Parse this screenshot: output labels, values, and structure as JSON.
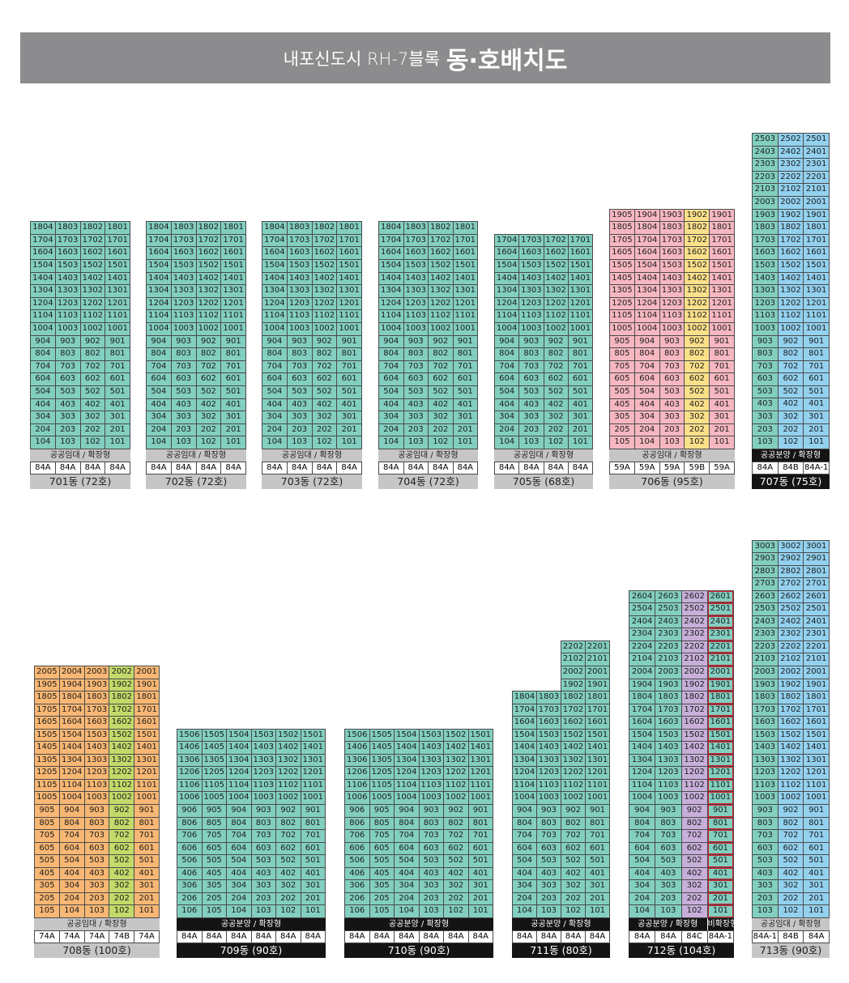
{
  "title": {
    "prefix": "내포신도시 RH-7블록",
    "main": "동·호배치도"
  },
  "buildings": [
    {
      "name": "701동 (72호)",
      "label": "공공임대 / 확장형",
      "name_style": "gray",
      "label_style": "gray",
      "floors": [
        "18",
        "17",
        "16",
        "15",
        "14",
        "13",
        "12",
        "11",
        "10",
        "9",
        "8",
        "7",
        "6",
        "5",
        "4",
        "3",
        "2",
        "1"
      ],
      "units": [
        "04",
        "03",
        "02",
        "01"
      ],
      "types": [
        "84A",
        "84A",
        "84A",
        "84A"
      ],
      "colors": [
        "teal",
        "teal",
        "teal",
        "teal"
      ]
    },
    {
      "name": "702동 (72호)",
      "label": "공공임대 / 확장형",
      "name_style": "gray",
      "label_style": "gray",
      "floors": [
        "18",
        "17",
        "16",
        "15",
        "14",
        "13",
        "12",
        "11",
        "10",
        "9",
        "8",
        "7",
        "6",
        "5",
        "4",
        "3",
        "2",
        "1"
      ],
      "units": [
        "04",
        "03",
        "02",
        "01"
      ],
      "types": [
        "84A",
        "84A",
        "84A",
        "84A"
      ],
      "colors": [
        "teal",
        "teal",
        "teal",
        "teal"
      ]
    },
    {
      "name": "703동 (72호)",
      "label": "공공임대 / 확장형",
      "name_style": "gray",
      "label_style": "gray",
      "floors": [
        "18",
        "17",
        "16",
        "15",
        "14",
        "13",
        "12",
        "11",
        "10",
        "9",
        "8",
        "7",
        "6",
        "5",
        "4",
        "3",
        "2",
        "1"
      ],
      "units": [
        "04",
        "03",
        "02",
        "01"
      ],
      "types": [
        "84A",
        "84A",
        "84A",
        "84A"
      ],
      "colors": [
        "teal",
        "teal",
        "teal",
        "teal"
      ]
    },
    {
      "name": "704동 (72호)",
      "label": "공공임대 / 확장형",
      "name_style": "gray",
      "label_style": "gray",
      "floors": [
        "18",
        "17",
        "16",
        "15",
        "14",
        "13",
        "12",
        "11",
        "10",
        "9",
        "8",
        "7",
        "6",
        "5",
        "4",
        "3",
        "2",
        "1"
      ],
      "units": [
        "04",
        "03",
        "02",
        "01"
      ],
      "types": [
        "84A",
        "84A",
        "84A",
        "84A"
      ],
      "colors": [
        "teal",
        "teal",
        "teal",
        "teal"
      ]
    },
    {
      "name": "705동 (68호)",
      "label": "공공임대 / 확장형",
      "name_style": "gray",
      "label_style": "gray",
      "floors": [
        "17",
        "16",
        "15",
        "14",
        "13",
        "12",
        "11",
        "10",
        "9",
        "8",
        "7",
        "6",
        "5",
        "4",
        "3",
        "2",
        "1"
      ],
      "units": [
        "04",
        "03",
        "02",
        "01"
      ],
      "types": [
        "84A",
        "84A",
        "84A",
        "84A"
      ],
      "colors": [
        "teal",
        "teal",
        "teal",
        "teal"
      ]
    },
    {
      "name": "706동 (95호)",
      "label": "공공임대 / 확장형",
      "name_style": "gray",
      "label_style": "gray",
      "floors": [
        "19",
        "18",
        "17",
        "16",
        "15",
        "14",
        "13",
        "12",
        "11",
        "10",
        "9",
        "8",
        "7",
        "6",
        "5",
        "4",
        "3",
        "2",
        "1"
      ],
      "units": [
        "05",
        "04",
        "03",
        "02",
        "01"
      ],
      "types": [
        "59A",
        "59A",
        "59A",
        "59B",
        "59A"
      ],
      "colors": [
        "pink",
        "pink",
        "pink",
        "yellow",
        "pink"
      ]
    },
    {
      "name": "707동 (75호)",
      "label": "공공분양 / 확장형",
      "name_style": "black",
      "label_style": "black",
      "floors": [
        "25",
        "24",
        "23",
        "22",
        "21",
        "20",
        "19",
        "18",
        "17",
        "16",
        "15",
        "14",
        "13",
        "12",
        "11",
        "10",
        "9",
        "8",
        "7",
        "6",
        "5",
        "4",
        "3",
        "2",
        "1"
      ],
      "units": [
        "03",
        "02",
        "01"
      ],
      "types": [
        "84A",
        "84B",
        "84A-1"
      ],
      "colors": [
        "teal",
        "blue",
        "blue"
      ]
    },
    {
      "name": "708동 (100호)",
      "label": "공공임대 / 확장형",
      "name_style": "gray",
      "label_style": "gray",
      "floors": [
        "20",
        "19",
        "18",
        "17",
        "16",
        "15",
        "14",
        "13",
        "12",
        "11",
        "10",
        "9",
        "8",
        "7",
        "6",
        "5",
        "4",
        "3",
        "2",
        "1"
      ],
      "units": [
        "05",
        "04",
        "03",
        "02",
        "01"
      ],
      "types": [
        "74A",
        "74A",
        "74A",
        "74B",
        "74A"
      ],
      "colors": [
        "orange",
        "orange",
        "orange",
        "lime",
        "orange"
      ]
    },
    {
      "name": "709동 (90호)",
      "label": "공공분양 / 확장형",
      "name_style": "black",
      "label_style": "black",
      "floors": [
        "15",
        "14",
        "13",
        "12",
        "11",
        "10",
        "9",
        "8",
        "7",
        "6",
        "5",
        "4",
        "3",
        "2",
        "1"
      ],
      "units": [
        "06",
        "05",
        "04",
        "03",
        "02",
        "01"
      ],
      "types": [
        "84A",
        "84A",
        "84A",
        "84A",
        "84A",
        "84A"
      ],
      "colors": [
        "teal",
        "teal",
        "teal",
        "teal",
        "teal",
        "teal"
      ]
    },
    {
      "name": "710동 (90호)",
      "label": "공공분양 / 확장형",
      "name_style": "black",
      "label_style": "black",
      "floors": [
        "15",
        "14",
        "13",
        "12",
        "11",
        "10",
        "9",
        "8",
        "7",
        "6",
        "5",
        "4",
        "3",
        "2",
        "1"
      ],
      "units": [
        "06",
        "05",
        "04",
        "03",
        "02",
        "01"
      ],
      "types": [
        "84A",
        "84A",
        "84A",
        "84A",
        "84A",
        "84A"
      ],
      "colors": [
        "teal",
        "teal",
        "teal",
        "teal",
        "teal",
        "teal"
      ]
    },
    {
      "name": "711동 (80호)",
      "label": "공공분양 / 확장형",
      "name_style": "black",
      "label_style": "black",
      "floors": [
        "22",
        "21",
        "20",
        "19",
        "18",
        "17",
        "16",
        "15",
        "14",
        "13",
        "12",
        "11",
        "10",
        "9",
        "8",
        "7",
        "6",
        "5",
        "4",
        "3",
        "2",
        "1"
      ],
      "units": [
        "04",
        "03",
        "02",
        "01"
      ],
      "column_floors": [
        18,
        18,
        22,
        22
      ],
      "types": [
        "84A",
        "84A",
        "84A",
        "84A"
      ],
      "colors": [
        "teal",
        "teal",
        "teal",
        "teal"
      ]
    },
    {
      "name": "712동 (104호)",
      "label": "공공분양 / 확장형",
      "label2": "비확장형",
      "name_style": "black",
      "label_style": "black",
      "floors": [
        "26",
        "25",
        "24",
        "23",
        "22",
        "21",
        "20",
        "19",
        "18",
        "17",
        "16",
        "15",
        "14",
        "13",
        "12",
        "11",
        "10",
        "9",
        "8",
        "7",
        "6",
        "5",
        "4",
        "3",
        "2",
        "1"
      ],
      "units": [
        "04",
        "03",
        "02",
        "01"
      ],
      "types": [
        "84A",
        "84A",
        "84C",
        "84A-1"
      ],
      "colors": [
        "teal",
        "teal",
        "lav",
        "teal"
      ],
      "highlight_column": 3
    },
    {
      "name": "713동 (90호)",
      "label": "공공임대 / 확장형",
      "name_style": "gray",
      "label_style": "gray",
      "floors": [
        "30",
        "29",
        "28",
        "27",
        "26",
        "25",
        "24",
        "23",
        "22",
        "21",
        "20",
        "19",
        "18",
        "17",
        "16",
        "15",
        "14",
        "13",
        "12",
        "11",
        "10",
        "9",
        "8",
        "7",
        "6",
        "5",
        "4",
        "3",
        "2",
        "1"
      ],
      "units": [
        "03",
        "02",
        "01"
      ],
      "types": [
        "84A-1",
        "84B",
        "84A"
      ],
      "colors": [
        "teal",
        "blue",
        "blue"
      ]
    }
  ]
}
